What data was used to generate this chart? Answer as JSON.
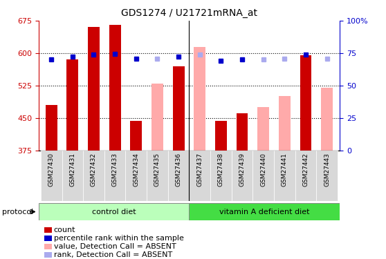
{
  "title": "GDS1274 / U21721mRNA_at",
  "samples": [
    "GSM27430",
    "GSM27431",
    "GSM27432",
    "GSM27433",
    "GSM27434",
    "GSM27435",
    "GSM27436",
    "GSM27437",
    "GSM27438",
    "GSM27439",
    "GSM27440",
    "GSM27441",
    "GSM27442",
    "GSM27443"
  ],
  "red_bars": [
    480,
    585,
    660,
    665,
    443,
    null,
    570,
    null,
    443,
    460,
    null,
    null,
    595,
    null
  ],
  "pink_bars": [
    null,
    null,
    null,
    null,
    null,
    530,
    null,
    615,
    null,
    null,
    475,
    500,
    null,
    520
  ],
  "blue_markers": [
    585,
    592,
    596,
    598,
    587,
    null,
    592,
    null,
    583,
    586,
    null,
    null,
    597,
    null
  ],
  "lightblue_markers": [
    null,
    null,
    null,
    null,
    null,
    587,
    null,
    596,
    null,
    null,
    586,
    587,
    null,
    587
  ],
  "ylim": [
    375,
    675
  ],
  "y_ticks": [
    375,
    450,
    525,
    600,
    675
  ],
  "right_yticks": [
    0,
    25,
    50,
    75,
    100
  ],
  "red_color": "#cc0000",
  "pink_color": "#ffaaaa",
  "blue_color": "#0000cc",
  "lightblue_color": "#aaaaee",
  "control_bg_light": "#bbffbb",
  "vitamin_bg": "#44dd44",
  "legend_items": [
    {
      "label": "count",
      "color": "#cc0000"
    },
    {
      "label": "percentile rank within the sample",
      "color": "#0000cc"
    },
    {
      "label": "value, Detection Call = ABSENT",
      "color": "#ffaaaa"
    },
    {
      "label": "rank, Detection Call = ABSENT",
      "color": "#aaaaee"
    }
  ],
  "grid_lines": [
    450,
    525,
    600
  ],
  "divider_idx": 6.5,
  "n_control": 7,
  "n_vitamin": 7
}
